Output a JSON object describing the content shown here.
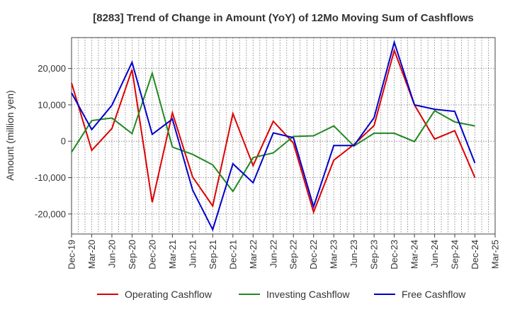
{
  "chart_data": {
    "type": "line",
    "title": "[8283]  Trend of Change in Amount (YoY) of 12Mo Moving Sum of Cashflows",
    "xlabel": "",
    "ylabel": "Amount (million yen)",
    "ylim": [
      -25500,
      28500
    ],
    "yticks": [
      20000,
      10000,
      0,
      -10000,
      -20000
    ],
    "ytick_labels": [
      "20,000",
      "10,000",
      "0",
      "-10,000",
      "-20,000"
    ],
    "categories": [
      "Dec-19",
      "Mar-20",
      "Jun-20",
      "Sep-20",
      "Dec-20",
      "Mar-21",
      "Jun-21",
      "Sep-21",
      "Dec-21",
      "Mar-22",
      "Jun-22",
      "Sep-22",
      "Dec-22",
      "Mar-23",
      "Jun-23",
      "Sep-23",
      "Dec-23",
      "Mar-24",
      "Jun-24",
      "Sep-24",
      "Dec-24",
      "Mar-25"
    ],
    "grid": true,
    "legend_position": "bottom",
    "series": [
      {
        "name": "Operating Cashflow",
        "color": "#dd0000",
        "values": [
          16000,
          -2500,
          3500,
          19700,
          -16800,
          7800,
          -9800,
          -17800,
          7600,
          -6700,
          5500,
          -500,
          -19500,
          -5200,
          -900,
          4300,
          25000,
          10000,
          600,
          2900,
          -10000,
          null
        ]
      },
      {
        "name": "Investing Cashflow",
        "color": "#228822",
        "values": [
          -3000,
          5700,
          6400,
          2100,
          18700,
          -1600,
          -3600,
          -6500,
          -13800,
          -4500,
          -3200,
          1300,
          1500,
          4200,
          -1300,
          2200,
          2200,
          -100,
          8400,
          5300,
          4200,
          null
        ]
      },
      {
        "name": "Free Cashflow",
        "color": "#0000cc",
        "values": [
          13300,
          3200,
          9900,
          21700,
          1900,
          6100,
          -13400,
          -24300,
          -6200,
          -11400,
          2300,
          1000,
          -18000,
          -1200,
          -1200,
          6500,
          27200,
          10000,
          8800,
          8200,
          -6000,
          null
        ]
      }
    ]
  }
}
